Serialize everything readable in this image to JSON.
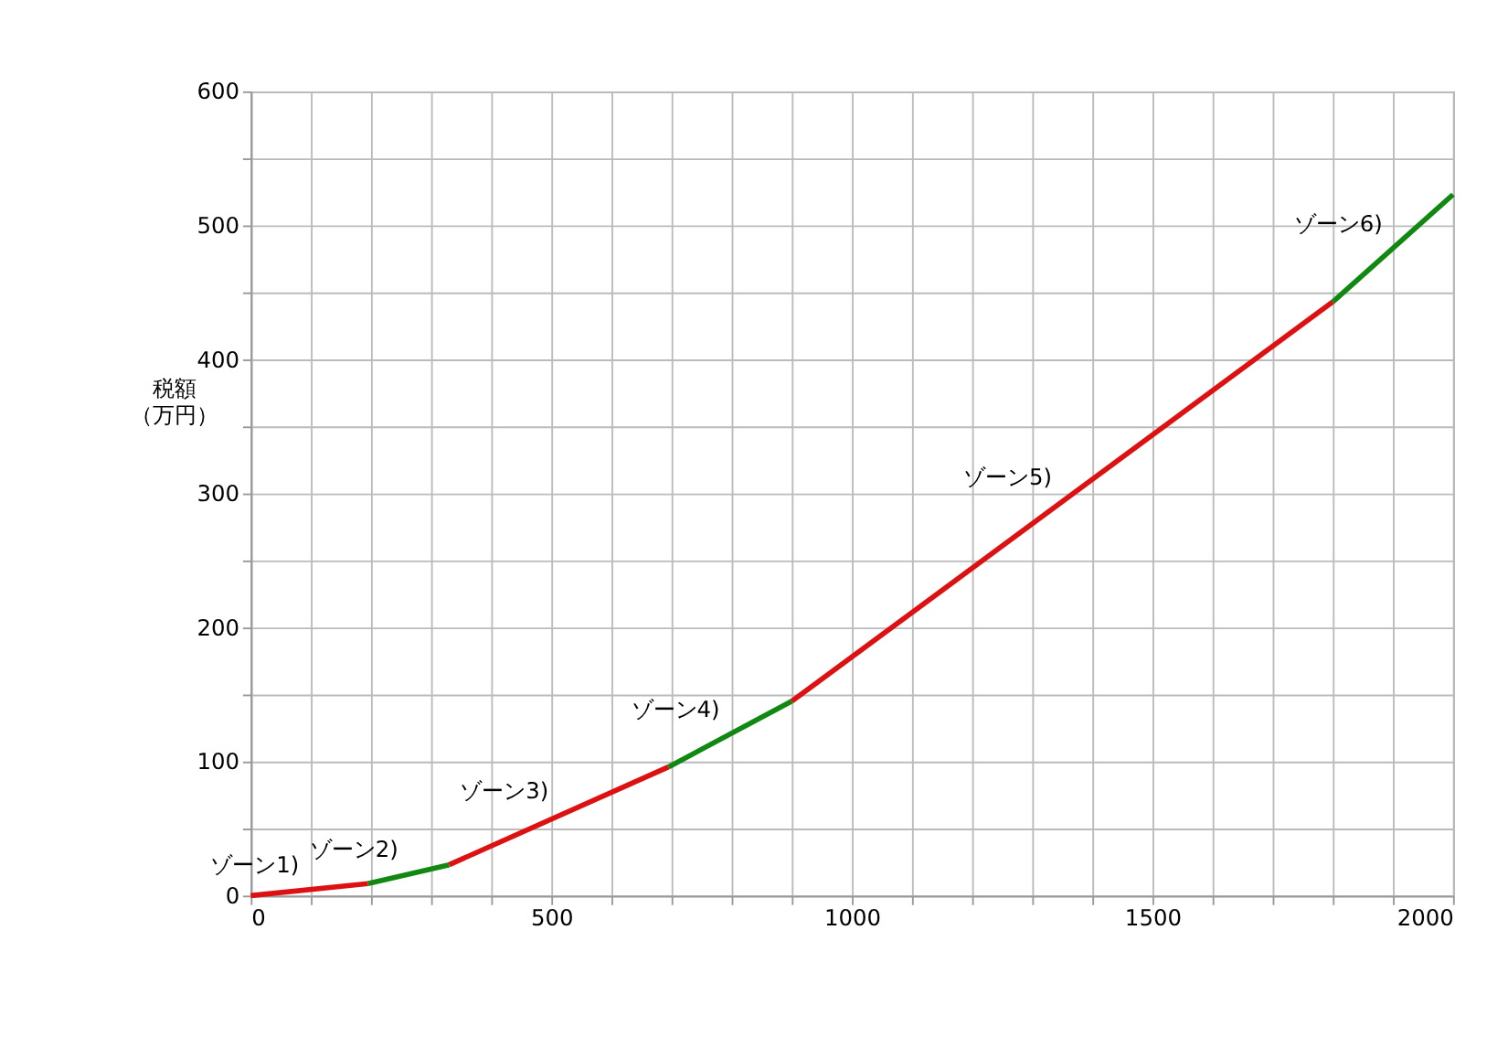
{
  "chart_data": {
    "type": "line",
    "ylabel": "税額（万円）",
    "xlim": [
      0,
      2000
    ],
    "ylim": [
      0,
      600
    ],
    "xticks": [
      0,
      {
        "value": 100,
        "label": null
      },
      {
        "value": 200,
        "label": null
      },
      {
        "value": 300,
        "label": null
      },
      {
        "value": 400,
        "label": null
      },
      500,
      {
        "value": 600,
        "label": null
      },
      {
        "value": 700,
        "label": null
      },
      {
        "value": 800,
        "label": null
      },
      {
        "value": 900,
        "label": null
      },
      1000,
      {
        "value": 1100,
        "label": null
      },
      {
        "value": 1200,
        "label": null
      },
      {
        "value": 1300,
        "label": null
      },
      {
        "value": 1400,
        "label": null
      },
      1500,
      {
        "value": 1600,
        "label": null
      },
      {
        "value": 1700,
        "label": null
      },
      {
        "value": 1800,
        "label": null
      },
      {
        "value": 1900,
        "label": null
      },
      2000
    ],
    "yticks": [
      0,
      {
        "value": 50,
        "label": null
      },
      100,
      {
        "value": 150,
        "label": null
      },
      200,
      {
        "value": 250,
        "label": null
      },
      300,
      {
        "value": 350,
        "label": null
      },
      400,
      {
        "value": 450,
        "label": null
      },
      500,
      {
        "value": 550,
        "label": null
      },
      600
    ],
    "grid": true,
    "legend": false,
    "marker": "none",
    "line_style": "solid",
    "series": [
      {
        "name": "ゾーン1)",
        "color": "#dd1111",
        "x": [
          0,
          195
        ],
        "values": [
          0,
          9
        ]
      },
      {
        "name": "ゾーン2)",
        "color": "#118811",
        "x": [
          195,
          330
        ],
        "values": [
          9,
          23
        ]
      },
      {
        "name": "ゾーン3)",
        "color": "#dd1111",
        "x": [
          330,
          695
        ],
        "values": [
          23,
          96
        ]
      },
      {
        "name": "ゾーン4)",
        "color": "#118811",
        "x": [
          695,
          900
        ],
        "values": [
          96,
          145
        ]
      },
      {
        "name": "ゾーン5)",
        "color": "#dd1111",
        "x": [
          900,
          1800
        ],
        "values": [
          145,
          443
        ]
      },
      {
        "name": "ゾーン6)",
        "color": "#118811",
        "x": [
          1800,
          2000
        ],
        "values": [
          443,
          523
        ]
      }
    ]
  }
}
